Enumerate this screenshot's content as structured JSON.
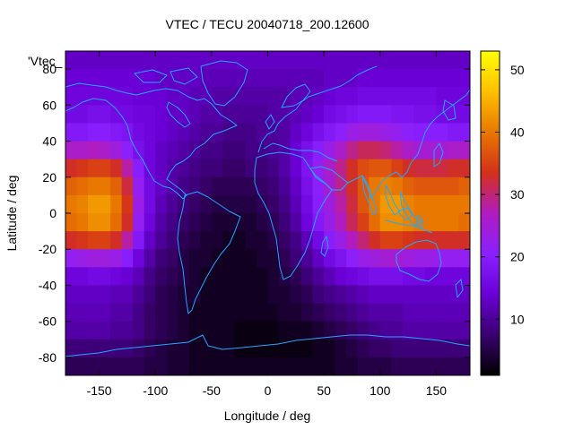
{
  "chart_data": {
    "type": "heatmap",
    "title": "VTEC / TECU 20040718_200.12600",
    "xlabel": "Longitude / deg",
    "ylabel": "Latitude / deg",
    "legend_label": "'Vtec_",
    "xlim": [
      -180,
      180
    ],
    "ylim": [
      -90,
      90
    ],
    "x_ticks": [
      -150,
      -100,
      -50,
      0,
      50,
      100,
      150
    ],
    "y_ticks": [
      -80,
      -60,
      -40,
      -20,
      0,
      20,
      40,
      60,
      80
    ],
    "colorbar": {
      "range": [
        1,
        53
      ],
      "ticks": [
        10,
        20,
        30,
        40,
        50
      ],
      "colors": [
        "#000000",
        "#3a0070",
        "#6a00d6",
        "#8a20ff",
        "#b01cbf",
        "#d4301a",
        "#e87800",
        "#ffc000",
        "#ffff00"
      ]
    },
    "grid": {
      "longitudes": [
        -175,
        -165,
        -155,
        -145,
        -135,
        -125,
        -115,
        -105,
        -95,
        -85,
        -75,
        -65,
        -55,
        -45,
        -35,
        -25,
        -15,
        -5,
        5,
        15,
        25,
        35,
        45,
        55,
        65,
        75,
        85,
        95,
        105,
        115,
        125,
        135,
        145,
        155,
        165,
        175
      ],
      "latitudes": [
        85,
        75,
        65,
        55,
        45,
        35,
        25,
        15,
        5,
        -5,
        -15,
        -25,
        -35,
        -45,
        -55,
        -65,
        -75,
        -85
      ],
      "vtec": [
        [
          13,
          13,
          13,
          13,
          13,
          13,
          13,
          13,
          13,
          13,
          13,
          13,
          13,
          13,
          13,
          13,
          13,
          13,
          13,
          13,
          13,
          13,
          13,
          13,
          13,
          13,
          13,
          13,
          13,
          13,
          13,
          13,
          13,
          13,
          13,
          13
        ],
        [
          14,
          14,
          14,
          14,
          14,
          14,
          14,
          14,
          13,
          13,
          13,
          13,
          12,
          12,
          12,
          12,
          12,
          12,
          12,
          12,
          12,
          12,
          12,
          13,
          13,
          13,
          14,
          14,
          14,
          14,
          14,
          14,
          14,
          14,
          14,
          14
        ],
        [
          15,
          15,
          15,
          15,
          15,
          15,
          14,
          14,
          14,
          13,
          13,
          12,
          12,
          11,
          11,
          11,
          11,
          11,
          11,
          11,
          12,
          12,
          13,
          14,
          15,
          15,
          16,
          16,
          16,
          16,
          16,
          16,
          16,
          15,
          15,
          15
        ],
        [
          16,
          16,
          17,
          17,
          16,
          16,
          15,
          15,
          14,
          13,
          13,
          12,
          11,
          11,
          10,
          10,
          10,
          10,
          11,
          11,
          12,
          13,
          14,
          16,
          17,
          18,
          19,
          19,
          19,
          18,
          18,
          17,
          17,
          16,
          16,
          16
        ],
        [
          19,
          19,
          20,
          20,
          19,
          18,
          16,
          15,
          14,
          13,
          12,
          11,
          10,
          10,
          9,
          9,
          9,
          10,
          10,
          11,
          13,
          15,
          17,
          19,
          21,
          23,
          24,
          24,
          23,
          22,
          21,
          20,
          20,
          20,
          19,
          19
        ],
        [
          26,
          26,
          27,
          26,
          24,
          21,
          17,
          15,
          13,
          12,
          11,
          10,
          9,
          9,
          8,
          8,
          9,
          9,
          10,
          11,
          14,
          17,
          20,
          23,
          26,
          29,
          31,
          31,
          30,
          28,
          26,
          25,
          25,
          25,
          26,
          26
        ],
        [
          33,
          34,
          35,
          35,
          33,
          28,
          20,
          15,
          13,
          11,
          10,
          9,
          8,
          8,
          7,
          7,
          8,
          8,
          9,
          11,
          14,
          18,
          22,
          26,
          29,
          33,
          36,
          37,
          37,
          35,
          33,
          32,
          32,
          32,
          33,
          33
        ],
        [
          38,
          39,
          40,
          40,
          38,
          32,
          22,
          16,
          13,
          11,
          9,
          8,
          7,
          6,
          6,
          6,
          6,
          7,
          8,
          10,
          13,
          17,
          21,
          25,
          29,
          33,
          37,
          40,
          41,
          40,
          38,
          37,
          37,
          37,
          37,
          38
        ],
        [
          40,
          41,
          43,
          43,
          40,
          34,
          23,
          16,
          12,
          10,
          8,
          7,
          6,
          5,
          5,
          5,
          5,
          6,
          7,
          9,
          12,
          16,
          20,
          24,
          28,
          32,
          37,
          40,
          43,
          43,
          41,
          40,
          40,
          40,
          40,
          40
        ],
        [
          39,
          40,
          42,
          42,
          39,
          33,
          22,
          15,
          11,
          9,
          7,
          6,
          5,
          4,
          4,
          4,
          4,
          5,
          6,
          8,
          11,
          15,
          19,
          23,
          27,
          31,
          35,
          39,
          42,
          42,
          41,
          40,
          40,
          40,
          40,
          39
        ],
        [
          33,
          34,
          35,
          35,
          33,
          28,
          19,
          13,
          10,
          8,
          6,
          5,
          4,
          4,
          3,
          3,
          4,
          4,
          5,
          7,
          9,
          12,
          16,
          20,
          23,
          27,
          30,
          33,
          35,
          35,
          34,
          33,
          33,
          33,
          33,
          33
        ],
        [
          22,
          23,
          24,
          24,
          23,
          20,
          15,
          11,
          8,
          7,
          5,
          4,
          4,
          3,
          3,
          3,
          3,
          4,
          4,
          6,
          8,
          10,
          13,
          16,
          18,
          21,
          23,
          24,
          25,
          25,
          24,
          23,
          23,
          22,
          22,
          22
        ],
        [
          15,
          15,
          16,
          16,
          15,
          14,
          12,
          9,
          7,
          6,
          5,
          4,
          3,
          3,
          3,
          3,
          3,
          3,
          4,
          5,
          6,
          8,
          10,
          12,
          14,
          15,
          16,
          17,
          17,
          17,
          16,
          16,
          15,
          15,
          15,
          15
        ],
        [
          13,
          13,
          13,
          13,
          12,
          12,
          10,
          8,
          6,
          5,
          4,
          4,
          3,
          3,
          3,
          3,
          3,
          3,
          4,
          4,
          5,
          6,
          8,
          9,
          10,
          11,
          12,
          13,
          13,
          13,
          13,
          13,
          13,
          13,
          13,
          13
        ],
        [
          12,
          12,
          12,
          12,
          11,
          11,
          9,
          7,
          6,
          5,
          4,
          3,
          3,
          3,
          3,
          3,
          3,
          3,
          3,
          4,
          4,
          5,
          6,
          7,
          8,
          9,
          10,
          11,
          11,
          11,
          12,
          12,
          12,
          12,
          12,
          12
        ],
        [
          11,
          11,
          11,
          11,
          10,
          10,
          9,
          7,
          6,
          5,
          4,
          3,
          3,
          3,
          3,
          2,
          2,
          2,
          2,
          3,
          3,
          3,
          4,
          5,
          6,
          7,
          8,
          9,
          10,
          10,
          11,
          11,
          11,
          11,
          11,
          11
        ],
        [
          8,
          8,
          8,
          8,
          8,
          8,
          7,
          6,
          5,
          4,
          4,
          3,
          3,
          3,
          3,
          2,
          2,
          2,
          2,
          2,
          2,
          2,
          3,
          3,
          4,
          5,
          6,
          7,
          7,
          8,
          8,
          8,
          8,
          8,
          8,
          8
        ],
        [
          6,
          6,
          6,
          6,
          6,
          6,
          6,
          5,
          5,
          4,
          4,
          3,
          3,
          3,
          3,
          3,
          3,
          3,
          3,
          3,
          3,
          3,
          3,
          3,
          4,
          4,
          5,
          5,
          5,
          6,
          6,
          6,
          6,
          6,
          6,
          6
        ]
      ]
    }
  }
}
